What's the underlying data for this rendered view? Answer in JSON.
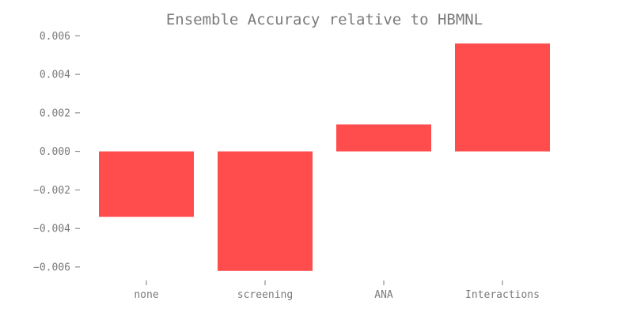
{
  "chart_data": {
    "type": "bar",
    "title": "Ensemble Accuracy relative to HBMNL",
    "xlabel": "",
    "ylabel": "",
    "categories": [
      "none",
      "screening",
      "ANA",
      "Interactions"
    ],
    "values": [
      -0.0034,
      -0.0062,
      0.0014,
      0.0056
    ],
    "ylim": [
      -0.0067,
      0.0063
    ],
    "yticks": [
      -0.006,
      -0.004,
      -0.002,
      0.0,
      0.002,
      0.004,
      0.006
    ],
    "ytick_labels": [
      "−0.006",
      "−0.004",
      "−0.002",
      "0.000",
      "0.002",
      "0.004",
      "0.006"
    ],
    "bar_color": "#ff4c4c",
    "text_color": "#7a7a7a",
    "grid": false,
    "legend": "none"
  }
}
